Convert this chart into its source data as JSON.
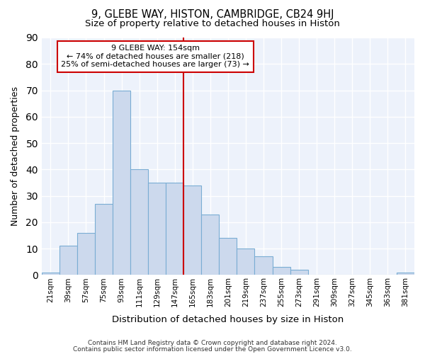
{
  "title": "9, GLEBE WAY, HISTON, CAMBRIDGE, CB24 9HJ",
  "subtitle": "Size of property relative to detached houses in Histon",
  "xlabel": "Distribution of detached houses by size in Histon",
  "ylabel": "Number of detached properties",
  "categories": [
    "21sqm",
    "39sqm",
    "57sqm",
    "75sqm",
    "93sqm",
    "111sqm",
    "129sqm",
    "147sqm",
    "165sqm",
    "183sqm",
    "201sqm",
    "219sqm",
    "237sqm",
    "255sqm",
    "273sqm",
    "291sqm",
    "309sqm",
    "327sqm",
    "345sqm",
    "363sqm",
    "381sqm"
  ],
  "values": [
    1,
    11,
    16,
    27,
    70,
    40,
    35,
    35,
    34,
    23,
    14,
    10,
    7,
    3,
    2,
    0,
    0,
    0,
    0,
    0,
    1
  ],
  "bar_color": "#ccd9ed",
  "bar_edge_color": "#7aadd4",
  "annotation_line1": "9 GLEBE WAY: 154sqm",
  "annotation_line2": "← 74% of detached houses are smaller (218)",
  "annotation_line3": "25% of semi-detached houses are larger (73) →",
  "annotation_box_color": "#cc0000",
  "vline_color": "#cc0000",
  "ylim": [
    0,
    90
  ],
  "yticks": [
    0,
    10,
    20,
    30,
    40,
    50,
    60,
    70,
    80,
    90
  ],
  "bg_color": "#edf2fb",
  "grid_color": "#ffffff",
  "footer1": "Contains HM Land Registry data © Crown copyright and database right 2024.",
  "footer2": "Contains public sector information licensed under the Open Government Licence v3.0."
}
